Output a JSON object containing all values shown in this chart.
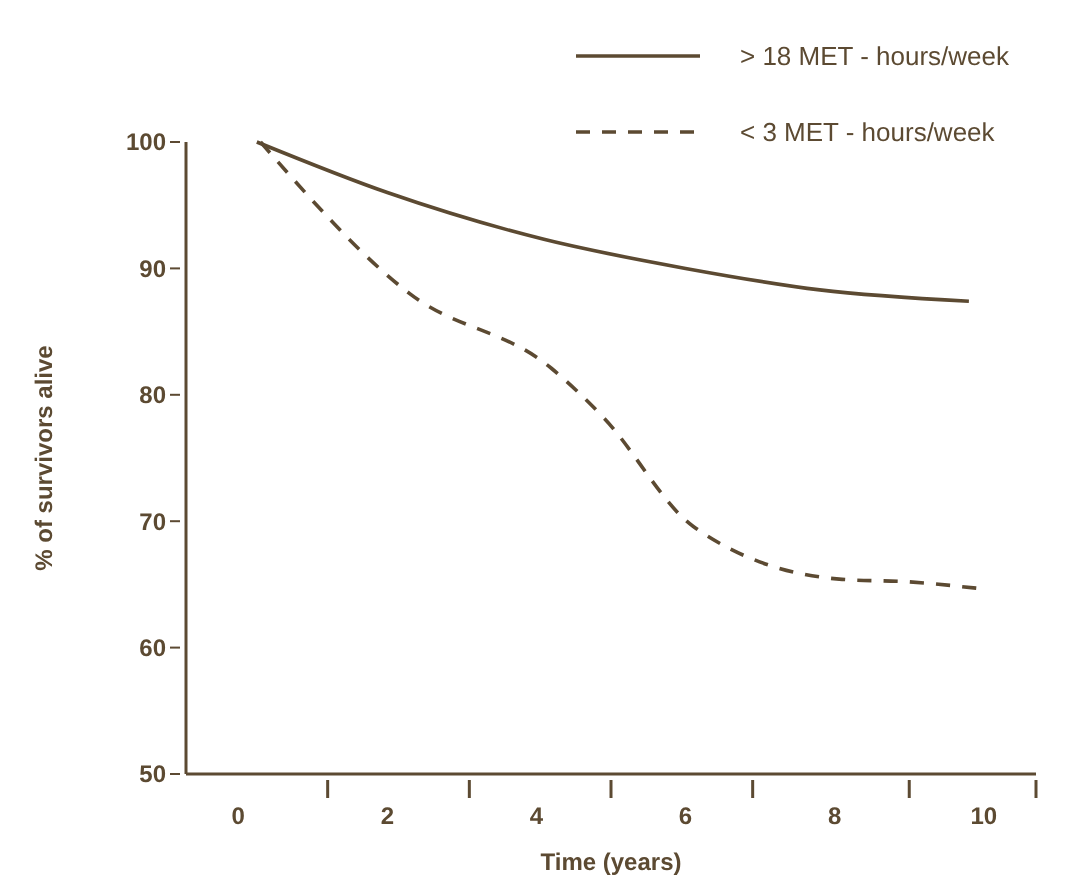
{
  "chart_data": {
    "type": "line",
    "xlabel": "Time (years)",
    "ylabel": "% of survivors alive",
    "xlim": [
      -0.7,
      10.7
    ],
    "ylim": [
      50,
      100
    ],
    "xticks": [
      {
        "value": 0,
        "label": "0"
      },
      {
        "value": 1.2,
        "label": null
      },
      {
        "value": 2,
        "label": "2"
      },
      {
        "value": 3.1,
        "label": null
      },
      {
        "value": 4,
        "label": "4"
      },
      {
        "value": 5,
        "label": null
      },
      {
        "value": 6,
        "label": "6"
      },
      {
        "value": 6.9,
        "label": null
      },
      {
        "value": 8,
        "label": "8"
      },
      {
        "value": 9,
        "label": null
      },
      {
        "value": 10,
        "label": "10"
      },
      {
        "value": 10.7,
        "label": null
      }
    ],
    "yticks": [
      50,
      60,
      70,
      80,
      90,
      100
    ],
    "legend": "top right",
    "grid": false,
    "series": [
      {
        "name": "> 18 MET - hours/week",
        "color": "#5c4a32",
        "line_style": "solid",
        "x": [
          0.25,
          2,
          4.1,
          6,
          7.8,
          9.8
        ],
        "values": [
          100,
          96,
          92.3,
          90,
          88.3,
          87.4
        ]
      },
      {
        "name": "< 3 MET - hours/week",
        "color": "#5c4a32",
        "line_style": "dashed",
        "x": [
          0.3,
          2.3,
          4.2,
          4.9,
          6.1,
          8.1,
          9,
          9.9
        ],
        "values": [
          100,
          88,
          82.1,
          78.2,
          69.6,
          65.4,
          65.2,
          64.7
        ]
      }
    ]
  }
}
